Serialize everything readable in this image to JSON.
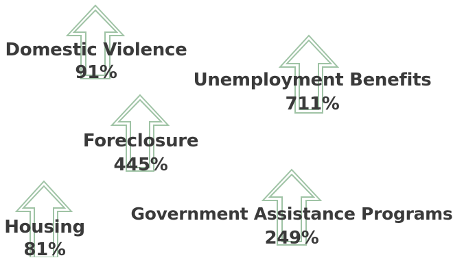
{
  "arrow_color": "#9fc3a5",
  "text_color": "#3a3a3a",
  "items": [
    {
      "name": "Domestic Violence",
      "value": "91%"
    },
    {
      "name": "Unemployment Benefits",
      "value": "711%"
    },
    {
      "name": "Foreclosure",
      "value": "445%"
    },
    {
      "name": "Housing",
      "value": "81%"
    },
    {
      "name": "Government Assistance Programs",
      "value": "249%"
    }
  ]
}
